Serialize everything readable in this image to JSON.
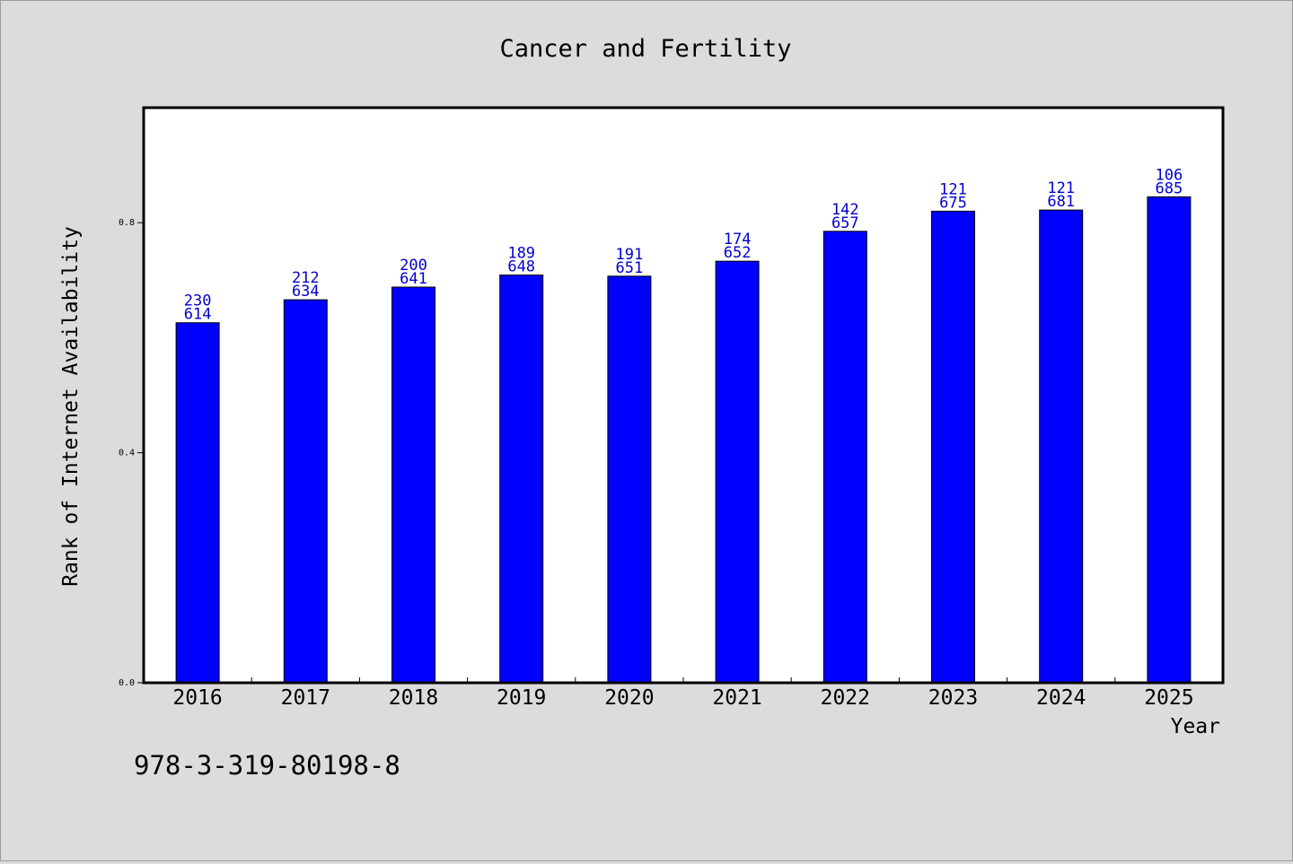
{
  "chart_data": {
    "type": "bar",
    "title": "Cancer and Fertility",
    "xlabel": "Year",
    "ylabel": "Rank of Internet Availability",
    "categories": [
      "2016",
      "2017",
      "2018",
      "2019",
      "2020",
      "2021",
      "2022",
      "2023",
      "2024",
      "2025"
    ],
    "values": [
      0.614,
      0.634,
      0.641,
      0.648,
      0.651,
      0.652,
      0.657,
      0.675,
      0.681,
      0.685
    ],
    "bar_value_heights": [
      0.626,
      0.666,
      0.688,
      0.709,
      0.707,
      0.733,
      0.785,
      0.82,
      0.822,
      0.845
    ],
    "label_top": [
      "230",
      "212",
      "200",
      "189",
      "191",
      "174",
      "142",
      "121",
      "121",
      "106"
    ],
    "label_bottom": [
      "614",
      "634",
      "641",
      "648",
      "651",
      "652",
      "657",
      "675",
      "681",
      "685"
    ],
    "ylim": [
      0,
      1.0
    ],
    "yticks": [
      "0.0",
      "0.4",
      "0.8"
    ],
    "ytick_values": [
      0,
      0.4,
      0.8
    ],
    "grid": false,
    "legend": "none"
  },
  "footer_text": "978-3-319-80198-8",
  "colors": {
    "background": "#dcdcdc",
    "plot_background": "#ffffff",
    "bar": "#0000ff",
    "bar_label": "#0000cc",
    "axis": "#000000"
  }
}
